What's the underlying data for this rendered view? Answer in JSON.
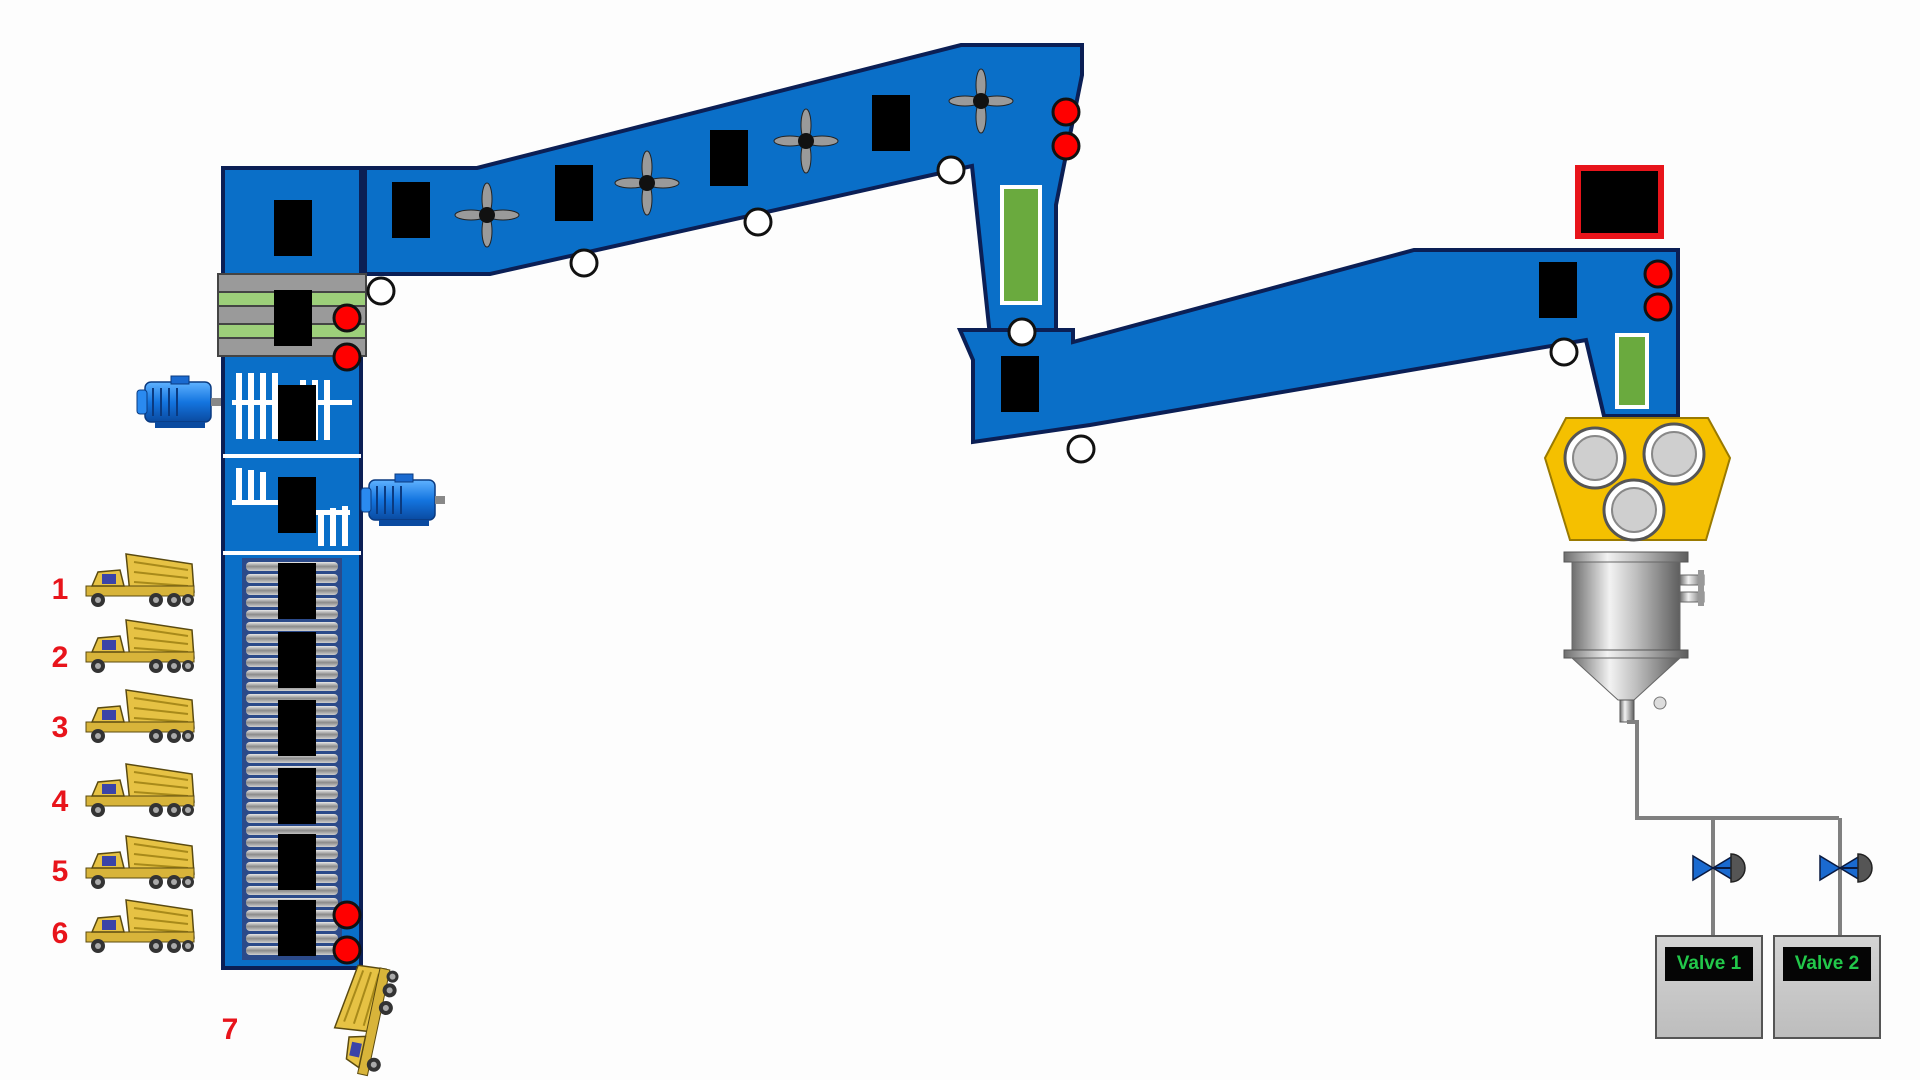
{
  "trucks": {
    "labels": [
      "1",
      "2",
      "3",
      "4",
      "5",
      "6",
      "7"
    ]
  },
  "valves": [
    {
      "label": "Valve 1"
    },
    {
      "label": "Valve 2"
    }
  ],
  "colors": {
    "conveyor_blue": "#0a6fc8",
    "conveyor_outline": "#0b1f55",
    "indicator_red": "#ff0000",
    "green_panel": "#6aaa3e",
    "crusher_yellow": "#f5c000",
    "truck_label_red": "#e8141b",
    "valve_text_green": "#22c84a"
  },
  "icons": [
    "dump-truck-icon",
    "electric-motor-icon",
    "fan-icon",
    "butterfly-valve-icon"
  ]
}
